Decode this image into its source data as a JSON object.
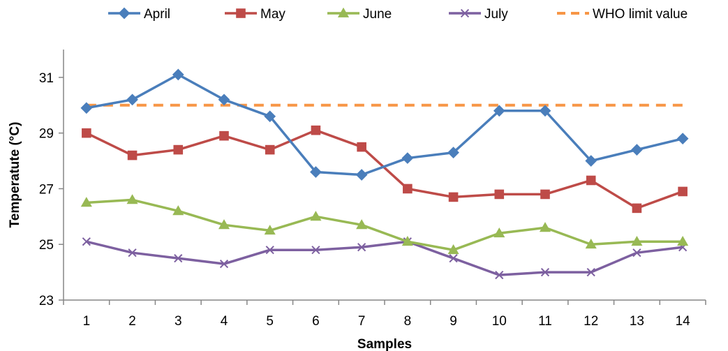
{
  "chart_data": {
    "type": "line",
    "xlabel": "Samples",
    "ylabel": "Temperatute (°C)",
    "x": [
      1,
      2,
      3,
      4,
      5,
      6,
      7,
      8,
      9,
      10,
      11,
      12,
      13,
      14
    ],
    "ylim": [
      23,
      32
    ],
    "yticks": [
      23,
      25,
      27,
      29,
      31
    ],
    "grid": false,
    "legend_position": "top",
    "series": [
      {
        "name": "April",
        "color": "#4a7ebb",
        "marker": "diamond",
        "values": [
          29.9,
          30.2,
          31.1,
          30.2,
          29.6,
          27.6,
          27.5,
          28.1,
          28.3,
          29.8,
          29.8,
          28.0,
          28.4,
          28.8
        ]
      },
      {
        "name": "May",
        "color": "#be4b48",
        "marker": "square",
        "values": [
          29.0,
          28.2,
          28.4,
          28.9,
          28.4,
          29.1,
          28.5,
          27.0,
          26.7,
          26.8,
          26.8,
          27.3,
          26.3,
          26.9
        ]
      },
      {
        "name": "June",
        "color": "#98b954",
        "marker": "triangle",
        "values": [
          26.5,
          26.6,
          26.2,
          25.7,
          25.5,
          26.0,
          25.7,
          25.1,
          24.8,
          25.4,
          25.6,
          25.0,
          25.1,
          25.1
        ]
      },
      {
        "name": "July",
        "color": "#7d60a0",
        "marker": "x",
        "values": [
          25.1,
          24.7,
          24.5,
          24.3,
          24.8,
          24.8,
          24.9,
          25.1,
          24.5,
          23.9,
          24.0,
          24.0,
          24.7,
          24.9
        ]
      },
      {
        "name": "WHO limit value",
        "color": "#f79646",
        "marker": "none",
        "dashed": true,
        "values": [
          30,
          30,
          30,
          30,
          30,
          30,
          30,
          30,
          30,
          30,
          30,
          30,
          30,
          30
        ]
      }
    ]
  }
}
